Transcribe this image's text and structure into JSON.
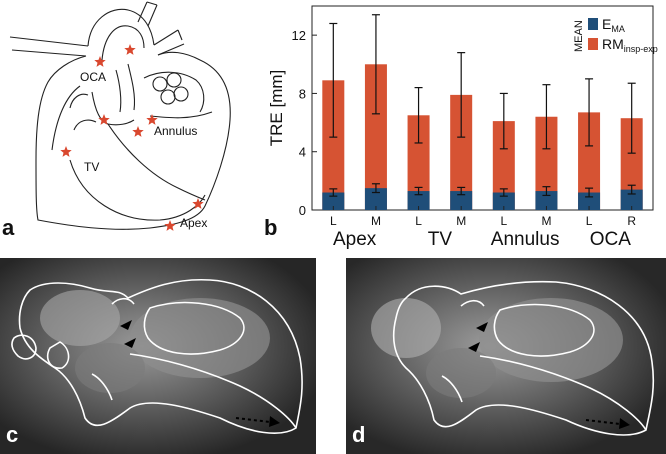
{
  "panels": {
    "a": {
      "letter": "a",
      "labels": {
        "oca": "OCA",
        "annulus": "Annulus",
        "tv": "TV",
        "apex": "Apex"
      },
      "colors": {
        "star": "#d9482f",
        "line": "#222222"
      }
    },
    "b": {
      "letter": "b"
    },
    "c": {
      "letter": "c"
    },
    "d": {
      "letter": "d"
    }
  },
  "chart_data": {
    "type": "bar",
    "ylabel": "TRE [mm]",
    "ylim": [
      0,
      14
    ],
    "yticks": [
      0,
      4,
      8,
      12
    ],
    "groups": [
      {
        "label": "Apex",
        "sublabels": [
          "L",
          "M"
        ]
      },
      {
        "label": "TV",
        "sublabels": [
          "L",
          "M"
        ]
      },
      {
        "label": "Annulus",
        "sublabels": [
          "L",
          "M"
        ]
      },
      {
        "label": "OCA",
        "sublabels": [
          "L",
          "R"
        ]
      }
    ],
    "legend": {
      "title": "MEAN",
      "position": "top-right"
    },
    "series": [
      {
        "name_main": "E",
        "name_sub": "MA",
        "color": "#1f4e79",
        "values": [
          1.2,
          1.5,
          1.3,
          1.3,
          1.2,
          1.3,
          1.2,
          1.4
        ],
        "errors": [
          0.25,
          0.3,
          0.25,
          0.25,
          0.25,
          0.3,
          0.3,
          0.3
        ]
      },
      {
        "name_main": "RM",
        "name_sub": "insp-exp",
        "color": "#d65333",
        "values": [
          8.9,
          10.0,
          6.5,
          7.9,
          6.1,
          6.4,
          6.7,
          6.3
        ],
        "errors": [
          3.9,
          3.4,
          1.9,
          2.9,
          1.9,
          2.2,
          2.3,
          2.4
        ]
      }
    ]
  }
}
